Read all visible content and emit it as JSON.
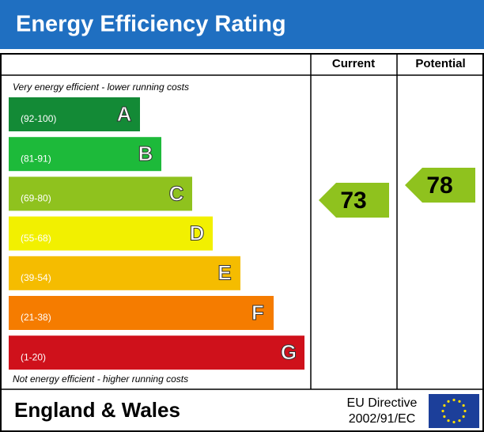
{
  "title": "Energy Efficiency Rating",
  "columns": [
    "Current",
    "Potential"
  ],
  "top_note": "Very energy efficient - lower running costs",
  "bottom_note": "Not energy efficient - higher running costs",
  "bands": [
    {
      "range": "(92-100)",
      "letter": "A",
      "color": "#138a36"
    },
    {
      "range": "(81-91)",
      "letter": "B",
      "color": "#1dba3a"
    },
    {
      "range": "(69-80)",
      "letter": "C",
      "color": "#8fc21e"
    },
    {
      "range": "(55-68)",
      "letter": "D",
      "color": "#f2f000"
    },
    {
      "range": "(39-54)",
      "letter": "E",
      "color": "#f5bc00"
    },
    {
      "range": "(21-38)",
      "letter": "F",
      "color": "#f57c00"
    },
    {
      "range": "(1-20)",
      "letter": "G",
      "color": "#cf111b"
    }
  ],
  "current": {
    "value": 73,
    "color": "#8fc21e"
  },
  "potential": {
    "value": 78,
    "color": "#8fc21e"
  },
  "footer": {
    "region": "England & Wales",
    "directive_line1": "EU Directive",
    "directive_line2": "2002/91/EC"
  }
}
